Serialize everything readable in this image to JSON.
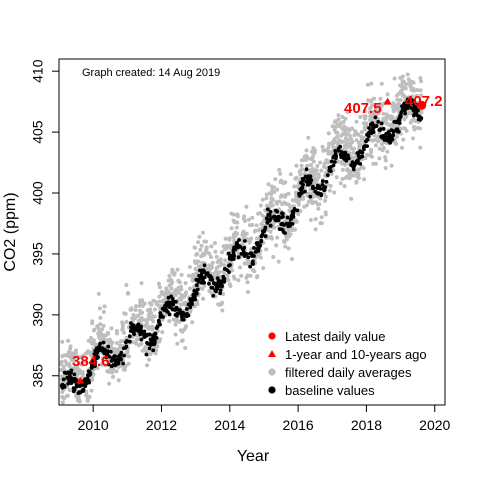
{
  "chart_data": {
    "type": "scatter",
    "title": "",
    "xlabel": "Year",
    "ylabel": "CO2 (ppm)",
    "xlim": [
      2009.0,
      2020.3
    ],
    "ylim": [
      382.6,
      411.0
    ],
    "xticks": [
      2010,
      2012,
      2014,
      2016,
      2018,
      2020
    ],
    "yticks": [
      385,
      390,
      395,
      400,
      405,
      410
    ],
    "note": "Graph created: 14 Aug 2019",
    "grid": false,
    "legend_position": "bottom-right",
    "legend": [
      {
        "label": "Latest daily value",
        "marker": "circle",
        "color": "#ff0000"
      },
      {
        "label": "1-year and 10-years ago",
        "marker": "triangle",
        "color": "#ff0000"
      },
      {
        "label": "filtered daily averages",
        "marker": "circle",
        "color": "#bebebe"
      },
      {
        "label": "baseline values",
        "marker": "circle",
        "color": "#000000"
      }
    ],
    "highlights": [
      {
        "name": "latest",
        "x": 2019.62,
        "y": 407.2,
        "label": "407.2",
        "marker": "circle"
      },
      {
        "name": "one-year-ago",
        "x": 2018.62,
        "y": 407.5,
        "label": "407.5",
        "marker": "triangle"
      },
      {
        "name": "ten-years-ago",
        "x": 2009.62,
        "y": 384.6,
        "label": "384.6",
        "marker": "triangle"
      }
    ],
    "trend": {
      "description": "approximate baseline curve: mean + seasonal cycle",
      "x": [
        2009.0,
        2010.0,
        2011.0,
        2012.0,
        2013.0,
        2014.0,
        2015.0,
        2016.0,
        2017.0,
        2018.0,
        2019.0,
        2019.62
      ],
      "mean": [
        383.6,
        386.0,
        387.8,
        389.5,
        392.0,
        394.3,
        396.6,
        399.5,
        402.3,
        404.2,
        406.3,
        407.0
      ],
      "seasonal_amplitude": 1.0
    },
    "series": [
      {
        "name": "filtered daily averages",
        "color": "#bebebe",
        "spread": 1.8,
        "samples_per_year": 160
      },
      {
        "name": "baseline values",
        "color": "#000000",
        "spread": 0.35,
        "samples_per_year": 70
      }
    ],
    "colors": {
      "accent": "#ff0000",
      "gray": "#bebebe",
      "black": "#000000"
    }
  }
}
